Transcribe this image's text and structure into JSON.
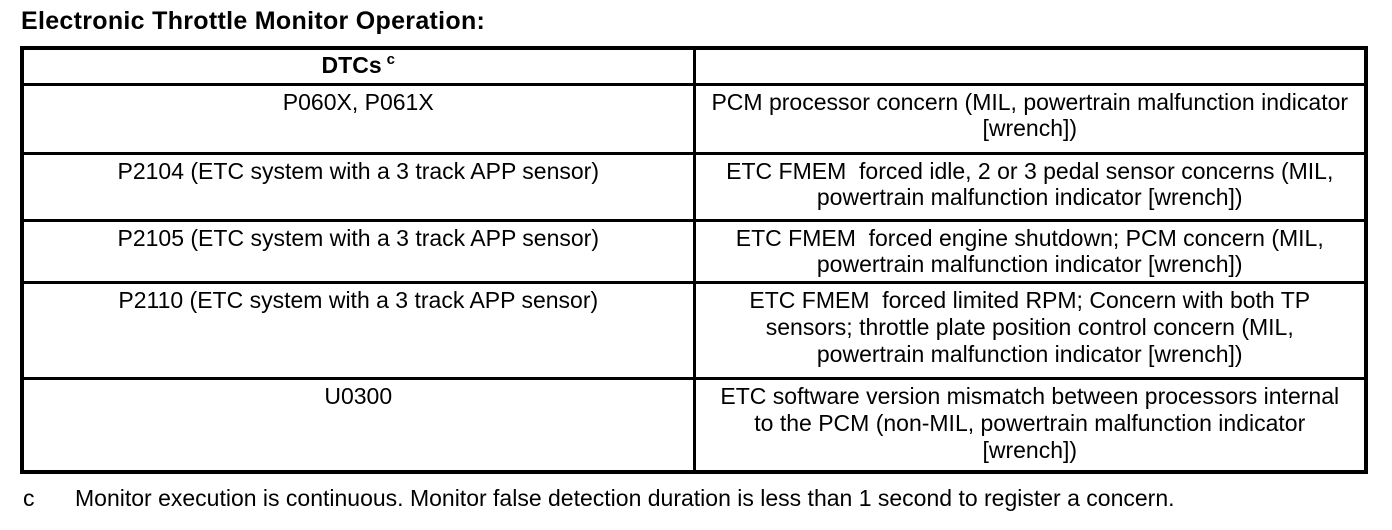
{
  "title": "Electronic Throttle Monitor Operation:",
  "colors": {
    "background": "#ffffff",
    "text": "#000000",
    "table_border": "#000000"
  },
  "table": {
    "header": {
      "dtcs_label": "DTCs",
      "dtcs_footnote_ref": "c",
      "description_label": ""
    },
    "rows": [
      {
        "dtc": "P060X, P061X",
        "description": "PCM processor concern (MIL, powertrain malfunction indicator [wrench])"
      },
      {
        "dtc": "P2104 (ETC system with a 3 track APP sensor)",
        "description": "ETC FMEM  forced idle, 2 or 3 pedal sensor concerns (MIL, powertrain malfunction indicator [wrench])"
      },
      {
        "dtc": "P2105 (ETC system with a 3 track APP sensor)",
        "description": "ETC FMEM  forced engine shutdown; PCM concern (MIL, powertrain malfunction indicator [wrench])"
      },
      {
        "dtc": "P2110 (ETC system with a 3 track APP sensor)",
        "description": "ETC FMEM  forced limited RPM; Concern with both TP sensors; throttle plate position control concern (MIL, powertrain malfunction indicator [wrench])"
      },
      {
        "dtc": "U0300",
        "description": "ETC software version mismatch between processors internal to the PCM (non-MIL, powertrain malfunction indicator [wrench])"
      }
    ]
  },
  "footnote": {
    "marker": "c",
    "text": "Monitor execution is continuous. Monitor false detection duration is less than 1 second to register a concern."
  }
}
